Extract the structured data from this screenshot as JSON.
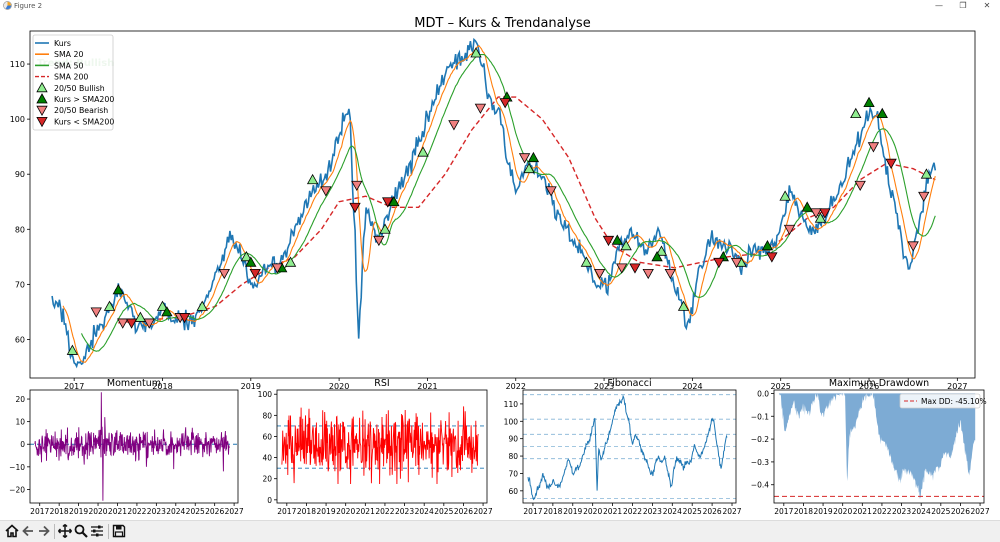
{
  "window": {
    "title": "Figure 2",
    "controls": {
      "minimize": "—",
      "maximize": "❐",
      "close": "✕"
    }
  },
  "toolbar": {
    "buttons": [
      {
        "name": "home-icon"
      },
      {
        "name": "back-arrow-icon"
      },
      {
        "name": "forward-arrow-icon"
      },
      {
        "name": "pan-icon"
      },
      {
        "name": "zoom-icon"
      },
      {
        "name": "configure-subplots-icon"
      },
      {
        "name": "save-icon"
      }
    ]
  },
  "colors": {
    "kurs": "#1f77b4",
    "sma20": "#ff7f0e",
    "sma50": "#2ca02c",
    "sma200": "#d62728",
    "momentum": "#800080",
    "rsi": "#ff0000",
    "drawdown": "#76a7d2"
  },
  "chart_data": [
    {
      "id": "main",
      "type": "line",
      "title": "MDT – Kurs & Trendanalyse",
      "xlim": [
        2016.5,
        2027.2
      ],
      "ylim": [
        53,
        116
      ],
      "xticks": [
        2017,
        2018,
        2019,
        2020,
        2021,
        2022,
        2023,
        2024,
        2025,
        2026,
        2027
      ],
      "xtick_labels": [
        "2017",
        "2018",
        "2019",
        "2020",
        "2021",
        "2022",
        "2023",
        "2024",
        "2025",
        "2026",
        "2027"
      ],
      "yticks": [
        60,
        70,
        80,
        90,
        100,
        110
      ],
      "ytick_labels": [
        "60",
        "70",
        "80",
        "90",
        "100",
        "110"
      ],
      "annotation": "Trend: Bullish",
      "legend": {
        "placement": "top-left",
        "entries": [
          {
            "label": "Kurs",
            "kind": "line",
            "color": "#1f77b4"
          },
          {
            "label": "SMA 20",
            "kind": "line",
            "color": "#ff7f0e"
          },
          {
            "label": "SMA 50",
            "kind": "line",
            "color": "#2ca02c"
          },
          {
            "label": "SMA 200",
            "kind": "dash",
            "color": "#d62728"
          },
          {
            "label": "20/50 Bullish",
            "kind": "tri-up",
            "color": "#90ee90"
          },
          {
            "label": "Kurs > SMA200",
            "kind": "tri-up",
            "color": "#008000"
          },
          {
            "label": "20/50 Bearish",
            "kind": "tri-down",
            "color": "#f08080"
          },
          {
            "label": "Kurs < SMA200",
            "kind": "tri-down",
            "color": "#d62728"
          }
        ]
      },
      "kurs_anchors": [
        [
          2016.75,
          67
        ],
        [
          2016.85,
          66
        ],
        [
          2016.95,
          58
        ],
        [
          2017.05,
          55
        ],
        [
          2017.15,
          58
        ],
        [
          2017.25,
          61
        ],
        [
          2017.4,
          65
        ],
        [
          2017.5,
          69
        ],
        [
          2017.6,
          67
        ],
        [
          2017.7,
          63
        ],
        [
          2017.9,
          63
        ],
        [
          2018.0,
          66
        ],
        [
          2018.1,
          64
        ],
        [
          2018.3,
          63
        ],
        [
          2018.45,
          66
        ],
        [
          2018.6,
          71
        ],
        [
          2018.75,
          79
        ],
        [
          2018.9,
          75
        ],
        [
          2019.0,
          70
        ],
        [
          2019.2,
          73
        ],
        [
          2019.4,
          75
        ],
        [
          2019.5,
          80
        ],
        [
          2019.7,
          87
        ],
        [
          2019.85,
          90
        ],
        [
          2019.95,
          94
        ],
        [
          2020.05,
          100
        ],
        [
          2020.12,
          101
        ],
        [
          2020.18,
          78
        ],
        [
          2020.22,
          60
        ],
        [
          2020.3,
          84
        ],
        [
          2020.45,
          78
        ],
        [
          2020.6,
          85
        ],
        [
          2020.75,
          90
        ],
        [
          2020.9,
          95
        ],
        [
          2021.0,
          100
        ],
        [
          2021.1,
          104
        ],
        [
          2021.2,
          108
        ],
        [
          2021.3,
          110
        ],
        [
          2021.45,
          111
        ],
        [
          2021.55,
          115
        ],
        [
          2021.62,
          110
        ],
        [
          2021.7,
          104
        ],
        [
          2021.82,
          101
        ],
        [
          2021.9,
          93
        ],
        [
          2022.0,
          88
        ],
        [
          2022.15,
          92
        ],
        [
          2022.3,
          90
        ],
        [
          2022.45,
          83
        ],
        [
          2022.6,
          79
        ],
        [
          2022.75,
          76
        ],
        [
          2022.9,
          70
        ],
        [
          2023.05,
          70
        ],
        [
          2023.15,
          76
        ],
        [
          2023.3,
          80
        ],
        [
          2023.45,
          76
        ],
        [
          2023.6,
          80
        ],
        [
          2023.75,
          73
        ],
        [
          2023.85,
          67
        ],
        [
          2023.95,
          62
        ],
        [
          2024.05,
          71
        ],
        [
          2024.2,
          78
        ],
        [
          2024.4,
          77
        ],
        [
          2024.55,
          73
        ],
        [
          2024.7,
          77
        ],
        [
          2024.85,
          76
        ],
        [
          2025.0,
          80
        ],
        [
          2025.1,
          87
        ],
        [
          2025.25,
          82
        ],
        [
          2025.4,
          80
        ],
        [
          2025.55,
          84
        ],
        [
          2025.7,
          88
        ],
        [
          2025.8,
          93
        ],
        [
          2025.9,
          96
        ],
        [
          2026.0,
          102
        ],
        [
          2026.1,
          100
        ],
        [
          2026.2,
          90
        ],
        [
          2026.3,
          84
        ],
        [
          2026.38,
          76
        ],
        [
          2026.45,
          73
        ],
        [
          2026.55,
          80
        ],
        [
          2026.65,
          88
        ],
        [
          2026.72,
          93
        ],
        [
          2026.75,
          92
        ]
      ],
      "sma200_anchors": [
        [
          2017.5,
          63
        ],
        [
          2017.8,
          63.5
        ],
        [
          2018.2,
          64
        ],
        [
          2018.6,
          66
        ],
        [
          2018.9,
          70
        ],
        [
          2019.2,
          73
        ],
        [
          2019.5,
          75
        ],
        [
          2019.8,
          80
        ],
        [
          2020.0,
          85
        ],
        [
          2020.3,
          86
        ],
        [
          2020.6,
          84
        ],
        [
          2020.9,
          84
        ],
        [
          2021.2,
          90
        ],
        [
          2021.5,
          98
        ],
        [
          2021.8,
          104
        ],
        [
          2022.0,
          104
        ],
        [
          2022.3,
          100
        ],
        [
          2022.6,
          93
        ],
        [
          2022.9,
          82
        ],
        [
          2023.1,
          77
        ],
        [
          2023.4,
          74
        ],
        [
          2023.8,
          73
        ],
        [
          2024.1,
          74
        ],
        [
          2024.4,
          75
        ],
        [
          2024.7,
          75.5
        ],
        [
          2025.0,
          78
        ],
        [
          2025.3,
          82
        ],
        [
          2025.6,
          84
        ],
        [
          2025.9,
          89
        ],
        [
          2026.2,
          92
        ],
        [
          2026.5,
          91
        ],
        [
          2026.75,
          89
        ]
      ],
      "markers_bull": [
        [
          2016.98,
          58
        ],
        [
          2017.4,
          66
        ],
        [
          2017.75,
          64
        ],
        [
          2018.0,
          66
        ],
        [
          2018.45,
          66
        ],
        [
          2018.95,
          75
        ],
        [
          2019.45,
          74
        ],
        [
          2019.7,
          89
        ],
        [
          2020.52,
          80
        ],
        [
          2020.95,
          94
        ],
        [
          2021.55,
          112
        ],
        [
          2022.15,
          91
        ],
        [
          2022.8,
          74
        ],
        [
          2023.25,
          77
        ],
        [
          2023.65,
          76
        ],
        [
          2023.9,
          66
        ],
        [
          2024.55,
          74
        ],
        [
          2025.05,
          86
        ],
        [
          2025.45,
          82
        ],
        [
          2025.85,
          101
        ],
        [
          2026.65,
          90
        ]
      ],
      "markers_above": [
        [
          2017.5,
          69
        ],
        [
          2018.05,
          65
        ],
        [
          2019.0,
          74
        ],
        [
          2019.35,
          73
        ],
        [
          2020.62,
          85
        ],
        [
          2021.9,
          104
        ],
        [
          2022.2,
          93
        ],
        [
          2023.15,
          78
        ],
        [
          2023.6,
          75
        ],
        [
          2024.35,
          75
        ],
        [
          2024.85,
          77
        ],
        [
          2025.3,
          84
        ],
        [
          2026.0,
          103
        ],
        [
          2026.15,
          101
        ]
      ],
      "markers_bear": [
        [
          2017.25,
          65
        ],
        [
          2017.55,
          63
        ],
        [
          2017.85,
          63
        ],
        [
          2018.2,
          64
        ],
        [
          2018.7,
          72
        ],
        [
          2019.3,
          73
        ],
        [
          2019.85,
          87
        ],
        [
          2020.2,
          88
        ],
        [
          2020.45,
          78
        ],
        [
          2021.3,
          99
        ],
        [
          2021.6,
          102
        ],
        [
          2022.1,
          93
        ],
        [
          2022.4,
          87
        ],
        [
          2022.95,
          72
        ],
        [
          2023.2,
          73
        ],
        [
          2023.5,
          72
        ],
        [
          2023.75,
          72
        ],
        [
          2024.5,
          74
        ],
        [
          2025.1,
          80
        ],
        [
          2025.4,
          83
        ],
        [
          2025.9,
          88
        ],
        [
          2026.05,
          95
        ],
        [
          2026.5,
          77
        ],
        [
          2026.62,
          86
        ]
      ],
      "markers_below": [
        [
          2017.65,
          63
        ],
        [
          2018.25,
          64
        ],
        [
          2019.05,
          72
        ],
        [
          2020.18,
          84
        ],
        [
          2020.55,
          85
        ],
        [
          2021.88,
          103
        ],
        [
          2023.05,
          78
        ],
        [
          2023.35,
          73
        ],
        [
          2024.3,
          74
        ],
        [
          2024.9,
          75
        ],
        [
          2025.5,
          83
        ],
        [
          2026.25,
          92
        ]
      ]
    },
    {
      "id": "momentum",
      "type": "line",
      "title": "Momentum",
      "xlim": [
        2016.5,
        2027.2
      ],
      "ylim": [
        -26,
        24
      ],
      "xticks": [
        2017,
        2018,
        2019,
        2020,
        2021,
        2022,
        2023,
        2024,
        2025,
        2026,
        2027
      ],
      "xtick_labels": [
        "2017",
        "2018",
        "2019",
        "2020",
        "2021",
        "2022",
        "2023",
        "2024",
        "2025",
        "2026",
        "2027"
      ],
      "yticks": [
        -20,
        -10,
        0,
        10,
        20
      ],
      "ytick_labels": [
        "−20",
        "−10",
        "0",
        "10",
        "20"
      ],
      "reference_line": 0,
      "range": [
        2016.75,
        2026.75
      ],
      "typical_range": [
        -6,
        6
      ],
      "spikes": [
        [
          2020.18,
          23
        ],
        [
          2020.25,
          -25
        ],
        [
          2020.35,
          12
        ],
        [
          2017.1,
          -8
        ],
        [
          2019.3,
          -9
        ],
        [
          2022.5,
          -10
        ],
        [
          2026.45,
          -12
        ],
        [
          2023.9,
          -11
        ]
      ]
    },
    {
      "id": "rsi",
      "type": "line",
      "title": "RSI",
      "xlim": [
        2016.5,
        2027.2
      ],
      "ylim": [
        -3,
        104
      ],
      "xticks": [
        2017,
        2018,
        2019,
        2020,
        2021,
        2022,
        2023,
        2024,
        2025,
        2026,
        2027
      ],
      "xtick_labels": [
        "2017",
        "2018",
        "2019",
        "2020",
        "2021",
        "2022",
        "2023",
        "2024",
        "2025",
        "2026",
        "2027"
      ],
      "yticks": [
        0,
        20,
        40,
        60,
        80,
        100
      ],
      "ytick_labels": [
        "0",
        "20",
        "40",
        "60",
        "80",
        "100"
      ],
      "reference_lines": [
        70,
        30
      ],
      "range": [
        2016.75,
        2026.75
      ],
      "typical_range": [
        15,
        95
      ]
    },
    {
      "id": "fibonacci",
      "type": "line",
      "title": "Fibonacci",
      "xlim": [
        2016.5,
        2027.2
      ],
      "ylim": [
        53,
        118
      ],
      "xticks": [
        2017,
        2018,
        2019,
        2020,
        2021,
        2022,
        2023,
        2024,
        2025,
        2026,
        2027
      ],
      "xtick_labels": [
        "2017",
        "2018",
        "2019",
        "2020",
        "2021",
        "2022",
        "2023",
        "2024",
        "2025",
        "2026",
        "2027"
      ],
      "yticks": [
        60,
        70,
        80,
        90,
        100,
        110
      ],
      "ytick_labels": [
        "60",
        "70",
        "80",
        "90",
        "100",
        "110"
      ],
      "levels": [
        115.3,
        101.2,
        92.5,
        85.5,
        78.5,
        55.5
      ]
    },
    {
      "id": "drawdown",
      "type": "area",
      "title": "Maximum Drawdown",
      "xlim": [
        2016.5,
        2027.2
      ],
      "ylim": [
        -0.48,
        0.015
      ],
      "xticks": [
        2017,
        2018,
        2019,
        2020,
        2021,
        2022,
        2023,
        2024,
        2025,
        2026,
        2027
      ],
      "xtick_labels": [
        "2017",
        "2018",
        "2019",
        "2020",
        "2021",
        "2022",
        "2023",
        "2024",
        "2025",
        "2026",
        "2027"
      ],
      "yticks": [
        0,
        -0.1,
        -0.2,
        -0.3,
        -0.4
      ],
      "ytick_labels": [
        "0.0",
        "−0.1",
        "−0.2",
        "−0.3",
        "−0.4"
      ],
      "max_dd": -0.451,
      "legend": {
        "placement": "top-right",
        "entries": [
          {
            "label": "Max DD: -45.10%",
            "kind": "dash",
            "color": "#d62728"
          }
        ]
      },
      "anchors": [
        [
          2016.75,
          0
        ],
        [
          2016.85,
          -0.02
        ],
        [
          2017.05,
          -0.17
        ],
        [
          2017.5,
          -0.04
        ],
        [
          2017.7,
          -0.1
        ],
        [
          2018.0,
          -0.06
        ],
        [
          2018.3,
          -0.09
        ],
        [
          2018.7,
          0
        ],
        [
          2018.9,
          -0.1
        ],
        [
          2019.1,
          -0.08
        ],
        [
          2019.5,
          -0.02
        ],
        [
          2019.9,
          0
        ],
        [
          2020.12,
          0
        ],
        [
          2020.22,
          -0.4
        ],
        [
          2020.35,
          -0.18
        ],
        [
          2020.6,
          -0.15
        ],
        [
          2020.9,
          -0.06
        ],
        [
          2021.2,
          -0.01
        ],
        [
          2021.55,
          0
        ],
        [
          2021.7,
          -0.1
        ],
        [
          2021.9,
          -0.2
        ],
        [
          2022.2,
          -0.22
        ],
        [
          2022.5,
          -0.3
        ],
        [
          2022.9,
          -0.38
        ],
        [
          2023.2,
          -0.33
        ],
        [
          2023.5,
          -0.35
        ],
        [
          2023.8,
          -0.41
        ],
        [
          2023.95,
          -0.46
        ],
        [
          2024.2,
          -0.34
        ],
        [
          2024.5,
          -0.36
        ],
        [
          2024.9,
          -0.33
        ],
        [
          2025.2,
          -0.26
        ],
        [
          2025.5,
          -0.28
        ],
        [
          2025.8,
          -0.18
        ],
        [
          2026.0,
          -0.12
        ],
        [
          2026.2,
          -0.22
        ],
        [
          2026.45,
          -0.37
        ],
        [
          2026.6,
          -0.25
        ],
        [
          2026.75,
          -0.2
        ]
      ]
    }
  ]
}
